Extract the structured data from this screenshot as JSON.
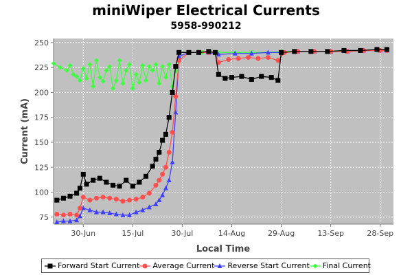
{
  "chart_data": {
    "type": "line",
    "title": "miniWiper Electrical Currents",
    "subtitle": "5958-990212",
    "xlabel": "Local Time",
    "ylabel": "Current (mA)",
    "ylim": [
      68,
      254
    ],
    "xlim": [
      "2025-06-21",
      "2025-10-02"
    ],
    "y_ticks": [
      75,
      100,
      125,
      150,
      175,
      200,
      225,
      250
    ],
    "x_ticks": [
      {
        "date": "2025-06-30",
        "label": "30-Jun"
      },
      {
        "date": "2025-07-15",
        "label": "15-Jul"
      },
      {
        "date": "2025-07-30",
        "label": "30-Jul"
      },
      {
        "date": "2025-08-14",
        "label": "14-Aug"
      },
      {
        "date": "2025-08-29",
        "label": "29-Aug"
      },
      {
        "date": "2025-09-13",
        "label": "13-Sep"
      },
      {
        "date": "2025-09-28",
        "label": "28-Sep"
      }
    ],
    "grid": true,
    "legend_position": "bottom",
    "plot_background": "#c0c0c0",
    "series": [
      {
        "name": "Forward Start Current",
        "color": "#000000",
        "marker": "square",
        "x": [
          "2025-06-22",
          "2025-06-24",
          "2025-06-26",
          "2025-06-28",
          "2025-06-29",
          "2025-06-30",
          "2025-07-01",
          "2025-07-03",
          "2025-07-05",
          "2025-07-07",
          "2025-07-09",
          "2025-07-11",
          "2025-07-13",
          "2025-07-15",
          "2025-07-17",
          "2025-07-19",
          "2025-07-21",
          "2025-07-22",
          "2025-07-23",
          "2025-07-24",
          "2025-07-25",
          "2025-07-26",
          "2025-07-27",
          "2025-07-28",
          "2025-07-29",
          "2025-08-01",
          "2025-08-04",
          "2025-08-07",
          "2025-08-09",
          "2025-08-10",
          "2025-08-12",
          "2025-08-14",
          "2025-08-17",
          "2025-08-20",
          "2025-08-23",
          "2025-08-26",
          "2025-08-28",
          "2025-08-29",
          "2025-09-02",
          "2025-09-07",
          "2025-09-12",
          "2025-09-17",
          "2025-09-22",
          "2025-09-27",
          "2025-09-30"
        ],
        "y": [
          92,
          94,
          96,
          99,
          104,
          118,
          108,
          112,
          114,
          110,
          107,
          106,
          112,
          106,
          110,
          116,
          126,
          133,
          140,
          152,
          158,
          175,
          200,
          226,
          240,
          240,
          240,
          241,
          240,
          218,
          214,
          215,
          216,
          213,
          216,
          215,
          212,
          240,
          241,
          241,
          241,
          242,
          242,
          243,
          243
        ]
      },
      {
        "name": "Average Current",
        "color": "#ff5050",
        "marker": "circle",
        "x": [
          "2025-06-22",
          "2025-06-24",
          "2025-06-26",
          "2025-06-28",
          "2025-06-29",
          "2025-06-30",
          "2025-07-02",
          "2025-07-04",
          "2025-07-06",
          "2025-07-08",
          "2025-07-10",
          "2025-07-12",
          "2025-07-14",
          "2025-07-16",
          "2025-07-18",
          "2025-07-20",
          "2025-07-22",
          "2025-07-23",
          "2025-07-24",
          "2025-07-25",
          "2025-07-26",
          "2025-07-27",
          "2025-07-28",
          "2025-07-29",
          "2025-08-01",
          "2025-08-04",
          "2025-08-07",
          "2025-08-09",
          "2025-08-10",
          "2025-08-13",
          "2025-08-16",
          "2025-08-19",
          "2025-08-22",
          "2025-08-25",
          "2025-08-28",
          "2025-08-30",
          "2025-09-03",
          "2025-09-08",
          "2025-09-13",
          "2025-09-18",
          "2025-09-23",
          "2025-09-28",
          "2025-09-30"
        ],
        "y": [
          78,
          77,
          78,
          77,
          84,
          95,
          92,
          94,
          95,
          94,
          93,
          91,
          92,
          93,
          95,
          99,
          107,
          112,
          118,
          125,
          140,
          160,
          196,
          232,
          240,
          240,
          240,
          240,
          230,
          233,
          234,
          235,
          234,
          235,
          232,
          240,
          241,
          241,
          241,
          241,
          242,
          242,
          242
        ]
      },
      {
        "name": "Reverse Start Current",
        "color": "#4040ff",
        "marker": "triangle",
        "x": [
          "2025-06-22",
          "2025-06-24",
          "2025-06-26",
          "2025-06-28",
          "2025-06-29",
          "2025-06-30",
          "2025-07-02",
          "2025-07-04",
          "2025-07-06",
          "2025-07-08",
          "2025-07-10",
          "2025-07-12",
          "2025-07-14",
          "2025-07-16",
          "2025-07-18",
          "2025-07-20",
          "2025-07-22",
          "2025-07-23",
          "2025-07-24",
          "2025-07-25",
          "2025-07-26",
          "2025-07-27",
          "2025-07-28",
          "2025-07-29",
          "2025-08-01",
          "2025-08-04",
          "2025-08-07",
          "2025-08-10",
          "2025-08-15",
          "2025-08-20",
          "2025-08-25",
          "2025-08-29",
          "2025-09-03",
          "2025-09-08",
          "2025-09-13",
          "2025-09-18",
          "2025-09-23",
          "2025-09-28",
          "2025-09-30"
        ],
        "y": [
          70,
          71,
          71,
          72,
          76,
          84,
          82,
          80,
          80,
          79,
          78,
          77,
          77,
          80,
          82,
          85,
          88,
          92,
          97,
          104,
          112,
          130,
          180,
          236,
          240,
          240,
          240,
          238,
          239,
          239,
          240,
          240,
          241,
          241,
          241,
          241,
          242,
          242,
          242
        ]
      },
      {
        "name": "Final Current",
        "color": "#40ff40",
        "marker": "diamond",
        "x": [
          "2025-06-21",
          "2025-06-23",
          "2025-06-25",
          "2025-06-26",
          "2025-06-27",
          "2025-06-28",
          "2025-06-29",
          "2025-06-30",
          "2025-07-01",
          "2025-07-02",
          "2025-07-03",
          "2025-07-04",
          "2025-07-05",
          "2025-07-06",
          "2025-07-07",
          "2025-07-08",
          "2025-07-09",
          "2025-07-10",
          "2025-07-11",
          "2025-07-12",
          "2025-07-13",
          "2025-07-14",
          "2025-07-15",
          "2025-07-16",
          "2025-07-17",
          "2025-07-18",
          "2025-07-19",
          "2025-07-20",
          "2025-07-21",
          "2025-07-22",
          "2025-07-23",
          "2025-07-24",
          "2025-07-25",
          "2025-07-26",
          "2025-07-27",
          "2025-07-28",
          "2025-07-29",
          "2025-08-01",
          "2025-08-05",
          "2025-08-10",
          "2025-08-15",
          "2025-08-20",
          "2025-08-25",
          "2025-08-29",
          "2025-09-03",
          "2025-09-08",
          "2025-09-13",
          "2025-09-18",
          "2025-09-23",
          "2025-09-28",
          "2025-09-30"
        ],
        "y": [
          229,
          225,
          222,
          227,
          218,
          216,
          212,
          224,
          214,
          228,
          206,
          232,
          215,
          211,
          222,
          226,
          204,
          212,
          232,
          209,
          222,
          228,
          204,
          218,
          210,
          227,
          212,
          226,
          222,
          228,
          209,
          226,
          215,
          228,
          206,
          221,
          240,
          240,
          240,
          240,
          240,
          240,
          240,
          241,
          241,
          241,
          241,
          241,
          242,
          242,
          242
        ]
      }
    ]
  }
}
